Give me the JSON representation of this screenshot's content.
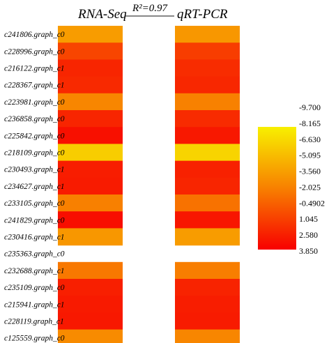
{
  "chart_data": {
    "type": "heatmap",
    "columns": [
      "RNA-Seq",
      "qRT-PCR"
    ],
    "annotation": "R²=0.97",
    "colorbar": {
      "ticks": [
        "-9.700",
        "-8.165",
        "-6.630",
        "-5.095",
        "-3.560",
        "-2.025",
        "-0.4902",
        "1.045",
        "2.580",
        "3.850"
      ],
      "min": -9.7,
      "max": 3.85,
      "low_color": "#f80000",
      "mid_color": "#f88000",
      "high_color": "#f8f000"
    },
    "rows": [
      {
        "label": "c241806.graph_c0",
        "values": [
          -4.6,
          -4.3
        ]
      },
      {
        "label": "c228996.graph_c0",
        "values": [
          0.2,
          0.6
        ]
      },
      {
        "label": "c216122.graph_c1",
        "values": [
          1.9,
          1.5
        ]
      },
      {
        "label": "c228367.graph_c1",
        "values": [
          1.7,
          1.8
        ]
      },
      {
        "label": "c223981.graph_c0",
        "values": [
          -3.3,
          -3.0
        ]
      },
      {
        "label": "c236858.graph_c0",
        "values": [
          1.9,
          1.6
        ]
      },
      {
        "label": "c225842.graph_c0",
        "values": [
          3.0,
          2.6
        ]
      },
      {
        "label": "c218109.graph_c0",
        "values": [
          -7.6,
          -8.0
        ]
      },
      {
        "label": "c230493.graph_c1",
        "values": [
          2.3,
          2.1
        ]
      },
      {
        "label": "c234627.graph_c1",
        "values": [
          2.4,
          1.9
        ]
      },
      {
        "label": "c233105.graph_c0",
        "values": [
          -2.9,
          -2.2
        ]
      },
      {
        "label": "c241829.graph_c0",
        "values": [
          3.1,
          2.7
        ]
      },
      {
        "label": "c230416.graph_c1",
        "values": [
          -4.3,
          -4.6
        ]
      },
      {
        "label": "c235363.graph_c0",
        "values": [
          null,
          null
        ]
      },
      {
        "label": "c232688.graph_c1",
        "values": [
          -2.5,
          -2.8
        ]
      },
      {
        "label": "c235109.graph_c0",
        "values": [
          2.2,
          2.0
        ]
      },
      {
        "label": "c215941.graph_c1",
        "values": [
          2.5,
          2.3
        ]
      },
      {
        "label": "c228119.graph_c1",
        "values": [
          2.6,
          2.4
        ]
      },
      {
        "label": "c125559.graph_c0",
        "values": [
          -3.6,
          -3.3
        ]
      }
    ]
  }
}
